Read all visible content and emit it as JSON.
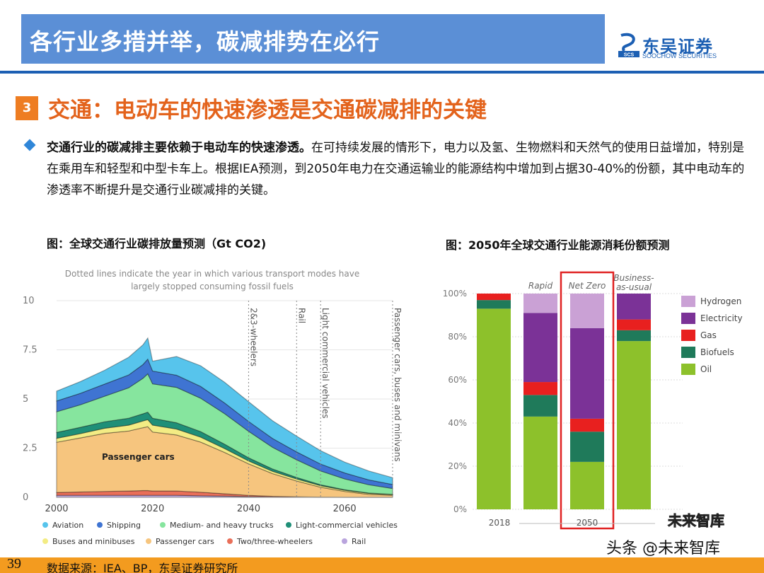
{
  "header": {
    "title": "各行业多措并举，碳减排势在必行",
    "logo_cn": "东吴证券",
    "logo_en": "SOOCHOW SECURITIES",
    "logo_mark": "SCS"
  },
  "section": {
    "number": "3",
    "title": "交通：电动车的快速渗透是交通碳减排的关键"
  },
  "body": {
    "bold": "交通行业的碳减排主要依赖于电动车的快速渗透。",
    "text": "在可持续发展的情形下，电力以及氢、生物燃料和天然气的使用日益增加，特别是在乘用车和轻型和中型卡车上。根据IEA预测，到2050年电力在交通运输业的能源结构中增加到占据30-40%的份额，其中电动车的渗透率不断提升是交通行业碳减排的关键。"
  },
  "captions": {
    "left": "图：全球交通行业碳排放量预测（Gt CO2)",
    "right": "图：2050年全球交通行业能源消耗份额预测"
  },
  "chart_data": [
    {
      "type": "area",
      "note": "Dotted lines indicate the year in which various transport modes have largely stopped consuming fossil fuels",
      "x": [
        2000,
        2005,
        2010,
        2015,
        2018,
        2019,
        2020,
        2025,
        2030,
        2035,
        2040,
        2045,
        2050,
        2055,
        2060,
        2065,
        2070
      ],
      "ylim": [
        0,
        10
      ],
      "yticks": [
        "0",
        "2.5",
        "5",
        "7.5",
        "10"
      ],
      "xticks": [
        "2000",
        "2020",
        "2040",
        "2060"
      ],
      "inline_label": "Passenger cars",
      "vlines": [
        {
          "x": 2040,
          "label": "2&3-wheelers"
        },
        {
          "x": 2050,
          "label": "Rail"
        },
        {
          "x": 2055,
          "label": "Light commercial vehicles"
        },
        {
          "x": 2070,
          "label": "Passenger cars, buses and minivans"
        }
      ],
      "series": [
        {
          "name": "Rail",
          "color": "#b9a4dd",
          "values": [
            0.1,
            0.1,
            0.1,
            0.1,
            0.1,
            0.1,
            0.1,
            0.1,
            0.08,
            0.06,
            0.04,
            0.02,
            0.01,
            0.0,
            0.0,
            0.0,
            0.0
          ]
        },
        {
          "name": "Two/three-wheelers",
          "color": "#e96f59",
          "values": [
            0.15,
            0.17,
            0.2,
            0.22,
            0.24,
            0.24,
            0.22,
            0.22,
            0.18,
            0.12,
            0.06,
            0.03,
            0.02,
            0.01,
            0.0,
            0.0,
            0.0
          ]
        },
        {
          "name": "Passenger cars",
          "color": "#f6c57e",
          "values": [
            2.55,
            2.75,
            2.95,
            3.05,
            3.2,
            3.25,
            3.0,
            2.85,
            2.55,
            2.1,
            1.6,
            1.15,
            0.8,
            0.5,
            0.3,
            0.15,
            0.1
          ]
        },
        {
          "name": "Buses and minibuses",
          "color": "#f3ec84",
          "values": [
            0.2,
            0.22,
            0.26,
            0.3,
            0.34,
            0.36,
            0.35,
            0.3,
            0.25,
            0.2,
            0.15,
            0.12,
            0.1,
            0.08,
            0.06,
            0.05,
            0.04
          ]
        },
        {
          "name": "Light-commercial vehicles",
          "color": "#1f8f78",
          "values": [
            0.3,
            0.32,
            0.33,
            0.35,
            0.37,
            0.38,
            0.35,
            0.32,
            0.28,
            0.22,
            0.16,
            0.12,
            0.08,
            0.05,
            0.03,
            0.02,
            0.01
          ]
        },
        {
          "name": "Medium- and heavy trucks",
          "color": "#86e59e",
          "values": [
            1.05,
            1.15,
            1.3,
            1.55,
            1.8,
            1.95,
            1.75,
            1.8,
            1.7,
            1.55,
            1.35,
            1.1,
            0.9,
            0.7,
            0.55,
            0.42,
            0.3
          ]
        },
        {
          "name": "Shipping",
          "color": "#3f74d2",
          "values": [
            0.55,
            0.58,
            0.62,
            0.65,
            0.7,
            0.75,
            0.65,
            0.62,
            0.6,
            0.55,
            0.5,
            0.45,
            0.4,
            0.35,
            0.3,
            0.25,
            0.2
          ]
        },
        {
          "name": "Aviation",
          "color": "#57c4ec",
          "values": [
            0.5,
            0.6,
            0.7,
            0.9,
            1.0,
            1.07,
            0.5,
            0.95,
            1.05,
            1.05,
            1.0,
            0.9,
            0.8,
            0.68,
            0.55,
            0.45,
            0.35
          ]
        }
      ],
      "legend": [
        "Aviation",
        "Shipping",
        "Medium- and heavy trucks",
        "Light-commercial vehicles",
        "Buses and minibuses",
        "Passenger cars",
        "Two/three-wheelers",
        "Rail"
      ]
    },
    {
      "type": "bar",
      "stacked": true,
      "ylim": [
        0,
        100
      ],
      "yticks": [
        "0%",
        "20%",
        "40%",
        "60%",
        "80%",
        "100%"
      ],
      "categories": [
        "2018",
        "Rapid",
        "Net Zero",
        "Business-as-usual"
      ],
      "x_groups": [
        "2018",
        "2050"
      ],
      "highlight": "Net Zero",
      "series": [
        {
          "name": "Oil",
          "color": "#8dc12b",
          "values": [
            93,
            43,
            22,
            78
          ]
        },
        {
          "name": "Biofuels",
          "color": "#1f7a5a",
          "values": [
            4,
            10,
            14,
            5
          ]
        },
        {
          "name": "Gas",
          "color": "#e8201f",
          "values": [
            3,
            6,
            6,
            5
          ]
        },
        {
          "name": "Electricity",
          "color": "#7b3297",
          "values": [
            0,
            32,
            42,
            12
          ]
        },
        {
          "name": "Hydrogen",
          "color": "#caa1d5",
          "values": [
            0,
            9,
            16,
            0
          ]
        }
      ],
      "legend": [
        "Hydrogen",
        "Electricity",
        "Gas",
        "Biofuels",
        "Oil"
      ]
    }
  ],
  "footer": {
    "page": "39",
    "source": "数据来源：IEA、BP，东吴证券研究所"
  },
  "watermark": {
    "line1": "头条 @未来智库",
    "line2": "未来智库"
  }
}
